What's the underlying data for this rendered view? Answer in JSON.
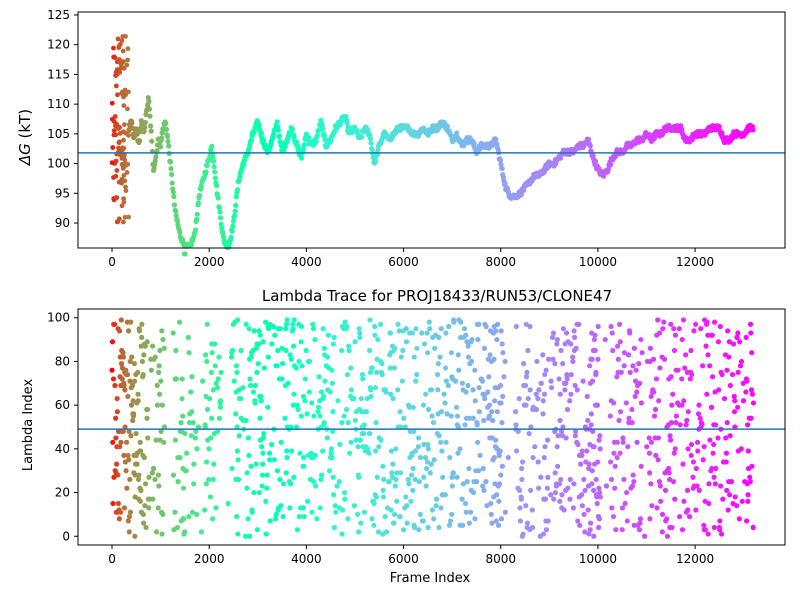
{
  "chart_data": [
    {
      "type": "scatter",
      "title": "",
      "xlabel": "",
      "ylabel_italic": "ΔG",
      "ylabel_rest": " (kT)",
      "xlim": [
        -700,
        13850
      ],
      "ylim": [
        85.8,
        125.5
      ],
      "xticks": [
        0,
        2000,
        4000,
        6000,
        8000,
        10000,
        12000
      ],
      "yticks": [
        90,
        95,
        100,
        105,
        110,
        115,
        120,
        125
      ],
      "hline": 101.8,
      "hline_color": "#1f77b4",
      "colormap": "rainbow (reversed along frame index: red at start, purple at end)",
      "trace": [
        [
          0,
          100
        ],
        [
          50,
          104
        ],
        [
          100,
          106
        ],
        [
          150,
          104
        ],
        [
          200,
          103
        ],
        [
          250,
          105
        ],
        [
          300,
          102
        ],
        [
          350,
          106
        ],
        [
          400,
          107
        ],
        [
          450,
          104
        ],
        [
          500,
          106
        ],
        [
          550,
          103
        ],
        [
          600,
          107
        ],
        [
          650,
          105
        ],
        [
          700,
          108
        ],
        [
          750,
          111
        ],
        [
          800,
          106
        ],
        [
          850,
          99
        ],
        [
          900,
          101
        ],
        [
          950,
          104
        ],
        [
          1000,
          103
        ],
        [
          1050,
          106
        ],
        [
          1100,
          107
        ],
        [
          1150,
          104
        ],
        [
          1200,
          100
        ],
        [
          1300,
          92
        ],
        [
          1400,
          88
        ],
        [
          1500,
          86
        ],
        [
          1600,
          86
        ],
        [
          1700,
          88
        ],
        [
          1800,
          95
        ],
        [
          1900,
          98
        ],
        [
          2000,
          101
        ],
        [
          2050,
          103
        ],
        [
          2100,
          100
        ],
        [
          2150,
          96
        ],
        [
          2200,
          93
        ],
        [
          2250,
          90
        ],
        [
          2300,
          87
        ],
        [
          2400,
          86
        ],
        [
          2500,
          90
        ],
        [
          2600,
          97
        ],
        [
          2700,
          100
        ],
        [
          2800,
          102
        ],
        [
          2900,
          105
        ],
        [
          3000,
          107
        ],
        [
          3100,
          104
        ],
        [
          3200,
          102
        ],
        [
          3300,
          104
        ],
        [
          3400,
          107
        ],
        [
          3450,
          104
        ],
        [
          3500,
          102
        ],
        [
          3600,
          104
        ],
        [
          3700,
          106
        ],
        [
          3800,
          103
        ],
        [
          3900,
          101
        ],
        [
          4000,
          105
        ],
        [
          4100,
          103
        ],
        [
          4200,
          104
        ],
        [
          4300,
          107
        ],
        [
          4400,
          103
        ],
        [
          4500,
          104
        ],
        [
          4600,
          106
        ],
        [
          4700,
          107
        ],
        [
          4800,
          108
        ],
        [
          4850,
          106
        ],
        [
          4900,
          105
        ],
        [
          5000,
          106
        ],
        [
          5100,
          104
        ],
        [
          5200,
          106
        ],
        [
          5300,
          105
        ],
        [
          5400,
          100
        ],
        [
          5500,
          103
        ],
        [
          5600,
          105
        ],
        [
          5700,
          104
        ],
        [
          5800,
          105
        ],
        [
          5900,
          106
        ],
        [
          6000,
          106
        ],
        [
          6100,
          106
        ],
        [
          6200,
          105
        ],
        [
          6300,
          105
        ],
        [
          6400,
          106
        ],
        [
          6500,
          105
        ],
        [
          6600,
          106
        ],
        [
          6700,
          106
        ],
        [
          6800,
          107
        ],
        [
          6900,
          106
        ],
        [
          7000,
          104
        ],
        [
          7100,
          105
        ],
        [
          7200,
          103
        ],
        [
          7300,
          104
        ],
        [
          7400,
          104
        ],
        [
          7500,
          102
        ],
        [
          7600,
          103
        ],
        [
          7700,
          103
        ],
        [
          7800,
          103
        ],
        [
          7900,
          104
        ],
        [
          8000,
          100
        ],
        [
          8100,
          96
        ],
        [
          8200,
          94.5
        ],
        [
          8300,
          94.5
        ],
        [
          8400,
          95
        ],
        [
          8500,
          96
        ],
        [
          8600,
          97
        ],
        [
          8700,
          98
        ],
        [
          8800,
          98
        ],
        [
          8900,
          99
        ],
        [
          9000,
          100
        ],
        [
          9100,
          100
        ],
        [
          9200,
          101
        ],
        [
          9300,
          102
        ],
        [
          9400,
          102
        ],
        [
          9500,
          102
        ],
        [
          9600,
          103
        ],
        [
          9700,
          103
        ],
        [
          9800,
          104
        ],
        [
          9900,
          101
        ],
        [
          10000,
          99
        ],
        [
          10100,
          98
        ],
        [
          10200,
          99
        ],
        [
          10300,
          101
        ],
        [
          10400,
          102
        ],
        [
          10500,
          102
        ],
        [
          10600,
          103
        ],
        [
          10700,
          103
        ],
        [
          10800,
          104
        ],
        [
          10900,
          104
        ],
        [
          11000,
          105
        ],
        [
          11100,
          104
        ],
        [
          11200,
          105
        ],
        [
          11300,
          105
        ],
        [
          11400,
          106
        ],
        [
          11500,
          106
        ],
        [
          11600,
          106
        ],
        [
          11700,
          106
        ],
        [
          11800,
          104
        ],
        [
          11900,
          104
        ],
        [
          12000,
          105
        ],
        [
          12100,
          105
        ],
        [
          12200,
          105
        ],
        [
          12300,
          106
        ],
        [
          12400,
          106
        ],
        [
          12500,
          106
        ],
        [
          12600,
          104
        ],
        [
          12700,
          104
        ],
        [
          12800,
          105
        ],
        [
          12900,
          105
        ],
        [
          13000,
          105
        ],
        [
          13100,
          106
        ],
        [
          13200,
          106
        ]
      ],
      "early_scatter": {
        "frame_range": [
          0,
          350
        ],
        "value_range": [
          90,
          121.5
        ]
      }
    },
    {
      "type": "scatter",
      "title": "Lambda Trace for PROJ18433/RUN53/CLONE47",
      "xlabel": "Frame Index",
      "ylabel": "Lambda Index",
      "xlim": [
        -700,
        13850
      ],
      "ylim": [
        -4,
        104
      ],
      "xticks": [
        0,
        2000,
        4000,
        6000,
        8000,
        10000,
        12000
      ],
      "yticks": [
        0,
        20,
        40,
        60,
        80,
        100
      ],
      "hline": 49,
      "hline_color": "#1f77b4",
      "lambda_min": 0,
      "lambda_max": 99,
      "frames": 13200,
      "sparse_gaps": [
        [
          1050,
          1250
        ],
        [
          1750,
          1900
        ],
        [
          2250,
          2450
        ],
        [
          8100,
          8300
        ],
        [
          9950,
          10250
        ],
        [
          10900,
          11050
        ]
      ],
      "dense_bands": [
        [
          0,
          600
        ],
        [
          7800,
          8000
        ],
        [
          9800,
          10050
        ]
      ]
    }
  ]
}
